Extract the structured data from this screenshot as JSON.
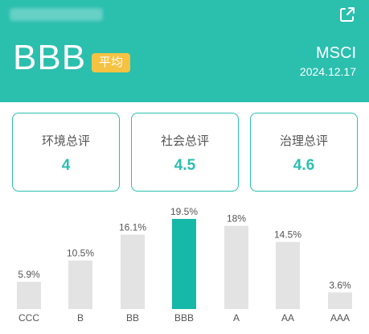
{
  "header": {
    "rating": "BBB",
    "badge": "平均",
    "provider": "MSCI",
    "date": "2024.12.17",
    "share_icon": "share-external-icon",
    "accent": "#2bbfae",
    "badge_color": "#f5c242"
  },
  "scores": [
    {
      "label": "环境总评",
      "value": "4"
    },
    {
      "label": "社会总评",
      "value": "4.5"
    },
    {
      "label": "治理总评",
      "value": "4.6"
    }
  ],
  "chart_data": {
    "type": "bar",
    "categories": [
      "CCC",
      "B",
      "BB",
      "BBB",
      "A",
      "AA",
      "AAA"
    ],
    "values": [
      5.9,
      10.5,
      16.1,
      19.5,
      18,
      14.5,
      3.6
    ],
    "labels": [
      "5.9%",
      "10.5%",
      "16.1%",
      "19.5%",
      "18%",
      "14.5%",
      "3.6%"
    ],
    "highlight": "BBB",
    "highlight_color": "#16b8a8",
    "bar_color": "#e3e3e3",
    "ylim": [
      0,
      19.5
    ]
  }
}
